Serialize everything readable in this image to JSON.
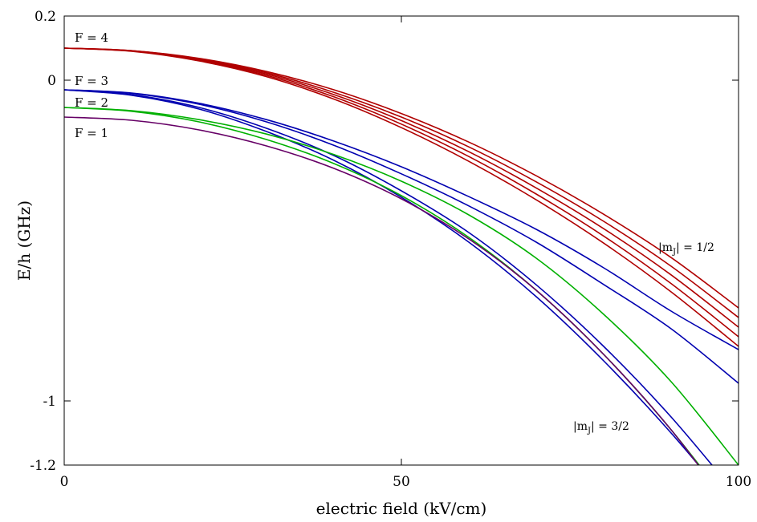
{
  "chart_data": {
    "type": "line",
    "xlabel": "electric field (kV/cm)",
    "ylabel": "E/h (GHz)",
    "xlim": [
      0,
      100
    ],
    "ylim": [
      -1.2,
      0.2
    ],
    "x_ticks": [
      {
        "value": 0,
        "label": "0"
      },
      {
        "value": 50,
        "label": "50"
      },
      {
        "value": 100,
        "label": "100"
      }
    ],
    "y_ticks": [
      {
        "value": 0.2,
        "label": "0.2"
      },
      {
        "value": 0,
        "label": "0"
      },
      {
        "value": -1,
        "label": "-1"
      },
      {
        "value": -1.2,
        "label": "-1.2"
      }
    ],
    "grid": false,
    "colors": {
      "F4": "#b00000",
      "F3": "#0000b0",
      "F2": "#00b000",
      "F1": "#660066"
    },
    "annotations": {
      "F4": "F = 4",
      "F3": "F = 3",
      "F2": "F = 2",
      "F1": "F = 1",
      "mj_half": "|m",
      "mj_half_sub": "J",
      "mj_half_rest": "| = 1/2",
      "mj_threehalf": "|m",
      "mj_threehalf_sub": "J",
      "mj_threehalf_rest": "| = 3/2"
    },
    "series": [
      {
        "group": "F4",
        "color": "#b00000",
        "x": [
          0,
          10,
          20,
          30,
          40,
          50,
          60,
          70,
          80,
          90,
          100
        ],
        "y": [
          0.1,
          0.092,
          0.068,
          0.027,
          -0.03,
          -0.104,
          -0.193,
          -0.298,
          -0.418,
          -0.553,
          -0.71
        ]
      },
      {
        "group": "F4",
        "color": "#b00000",
        "x": [
          0,
          10,
          20,
          30,
          40,
          50,
          60,
          70,
          80,
          90,
          100
        ],
        "y": [
          0.1,
          0.092,
          0.066,
          0.023,
          -0.038,
          -0.115,
          -0.208,
          -0.317,
          -0.44,
          -0.58,
          -0.74
        ]
      },
      {
        "group": "F4",
        "color": "#b00000",
        "x": [
          0,
          10,
          20,
          30,
          40,
          50,
          60,
          70,
          80,
          90,
          100
        ],
        "y": [
          0.1,
          0.091,
          0.064,
          0.019,
          -0.045,
          -0.126,
          -0.223,
          -0.336,
          -0.463,
          -0.607,
          -0.77
        ]
      },
      {
        "group": "F4",
        "color": "#b00000",
        "x": [
          0,
          10,
          20,
          30,
          40,
          50,
          60,
          70,
          80,
          90,
          100
        ],
        "y": [
          0.1,
          0.091,
          0.062,
          0.015,
          -0.052,
          -0.137,
          -0.238,
          -0.355,
          -0.486,
          -0.634,
          -0.8
        ]
      },
      {
        "group": "F4",
        "color": "#b00000",
        "x": [
          0,
          10,
          20,
          30,
          40,
          50,
          60,
          70,
          80,
          90,
          100
        ],
        "y": [
          0.1,
          0.09,
          0.06,
          0.011,
          -0.059,
          -0.148,
          -0.253,
          -0.373,
          -0.508,
          -0.66,
          -0.83
        ]
      },
      {
        "group": "F3",
        "color": "#0000b0",
        "x": [
          0,
          10,
          20,
          30,
          40,
          50,
          60,
          70,
          80,
          90,
          100
        ],
        "y": [
          -0.03,
          -0.04,
          -0.072,
          -0.123,
          -0.19,
          -0.27,
          -0.363,
          -0.465,
          -0.585,
          -0.72,
          -0.84
        ]
      },
      {
        "group": "F3",
        "color": "#0000b0",
        "x": [
          0,
          10,
          20,
          30,
          40,
          50,
          60,
          70,
          80,
          90,
          100
        ],
        "y": [
          -0.03,
          -0.041,
          -0.075,
          -0.13,
          -0.203,
          -0.292,
          -0.392,
          -0.505,
          -0.637,
          -0.775,
          -0.945
        ]
      },
      {
        "group": "F3",
        "color": "#0000b0",
        "x": [
          0,
          10,
          20,
          30,
          40,
          50,
          60,
          70,
          80,
          90,
          100
        ],
        "y": [
          -0.03,
          -0.045,
          -0.085,
          -0.15,
          -0.235,
          -0.345,
          -0.475,
          -0.638,
          -0.83,
          -1.05,
          -1.3
        ]
      },
      {
        "group": "F3",
        "color": "#0000b0",
        "x": [
          0,
          10,
          20,
          30,
          40,
          50,
          60,
          70,
          80,
          90,
          100
        ],
        "y": [
          -0.03,
          -0.047,
          -0.09,
          -0.16,
          -0.25,
          -0.365,
          -0.505,
          -0.675,
          -0.875,
          -1.1,
          -1.35
        ]
      },
      {
        "group": "F2",
        "color": "#00b000",
        "x": [
          0,
          10,
          20,
          30,
          40,
          50,
          60,
          70,
          80,
          90,
          100
        ],
        "y": [
          -0.085,
          -0.095,
          -0.123,
          -0.168,
          -0.232,
          -0.315,
          -0.42,
          -0.555,
          -0.73,
          -0.94,
          -1.2
        ]
      },
      {
        "group": "F2",
        "color": "#00b000",
        "x": [
          0,
          10,
          20,
          30,
          40,
          50,
          60,
          70,
          80,
          90,
          100
        ],
        "y": [
          -0.085,
          -0.097,
          -0.13,
          -0.185,
          -0.26,
          -0.36,
          -0.49,
          -0.655,
          -0.855,
          -1.09,
          -1.36
        ]
      },
      {
        "group": "F1",
        "color": "#660066",
        "x": [
          0,
          10,
          20,
          30,
          40,
          50,
          60,
          70,
          80,
          90,
          100
        ],
        "y": [
          -0.115,
          -0.125,
          -0.155,
          -0.205,
          -0.275,
          -0.37,
          -0.495,
          -0.655,
          -0.855,
          -1.09,
          -1.37
        ]
      }
    ]
  }
}
